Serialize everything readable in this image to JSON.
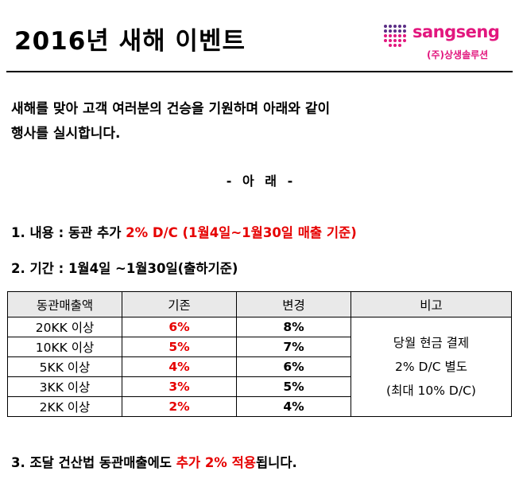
{
  "title": "2016년 새해 이벤트",
  "logo": {
    "word": "sangseng",
    "company": "(주)상생솔루션"
  },
  "intro": {
    "line1": "새해를 맞아 고객 여러분의 건승을 기원하며 아래와 같이",
    "line2": "행사를 실시합니다."
  },
  "arae": "- 아 래 -",
  "item1": {
    "prefix": "1. 내용 : 동관 추가 ",
    "highlight": "2% D/C (1월4일~1월30일 매출 기준)"
  },
  "item2": {
    "text": "2. 기간 : 1월4일 ~1월30일(출하기준)"
  },
  "table": {
    "headers": [
      "동관매출액",
      "기존",
      "변경",
      "비고"
    ],
    "rows": [
      {
        "amount": "20KK 이상",
        "before": "6%",
        "after": "8%"
      },
      {
        "amount": "10KK 이상",
        "before": "5%",
        "after": "7%"
      },
      {
        "amount": "5KK 이상",
        "before": "4%",
        "after": "6%"
      },
      {
        "amount": "3KK 이상",
        "before": "3%",
        "after": "5%"
      },
      {
        "amount": "2KK 이상",
        "before": "2%",
        "after": "4%"
      }
    ],
    "note": [
      "당월 현금 결제",
      "2% D/C 별도",
      "(최대 10% D/C)"
    ]
  },
  "item3": {
    "prefix": "3. 조달 건산법 동관매출에도 ",
    "highlight": "추가 2% 적용",
    "suffix": "됩니다."
  },
  "colors": {
    "accent_red": "#e60000",
    "brand_pink": "#e2177e",
    "brand_purple": "#5b2d86"
  }
}
